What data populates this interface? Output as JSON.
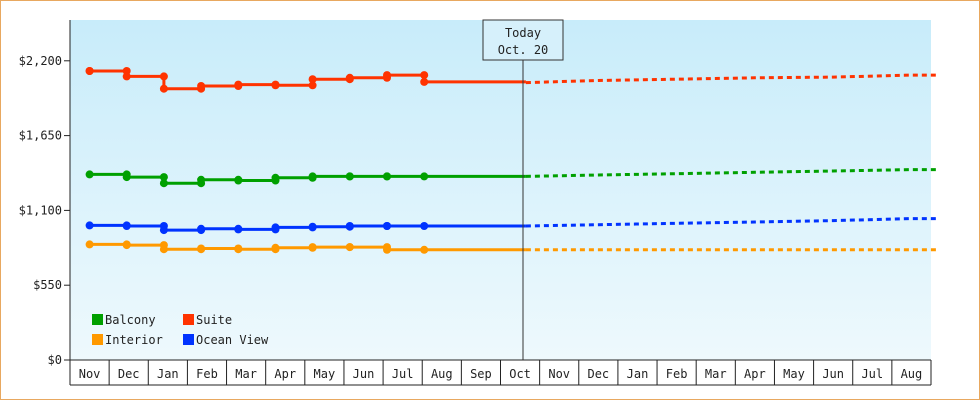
{
  "chart_data": {
    "type": "line",
    "title": "",
    "xlabel": "",
    "ylabel": "",
    "ylim": [
      0,
      2500
    ],
    "y_ticks": [
      {
        "value": 0,
        "label": "$0"
      },
      {
        "value": 550,
        "label": "$550"
      },
      {
        "value": 1100,
        "label": "$1,100"
      },
      {
        "value": 1650,
        "label": "$1,650"
      },
      {
        "value": 2200,
        "label": "$2,200"
      }
    ],
    "categories": [
      "Nov",
      "Dec",
      "Jan",
      "Feb",
      "Mar",
      "Apr",
      "May",
      "Jun",
      "Jul",
      "Aug",
      "Sep",
      "Oct",
      "Nov",
      "Dec",
      "Jan",
      "Feb",
      "Mar",
      "Apr",
      "May",
      "Jun",
      "Jul",
      "Aug"
    ],
    "today_marker": {
      "line1": "Today",
      "line2": "Oct. 20",
      "x": 11.15
    },
    "legend_placement": "bottom-left",
    "grid": false,
    "series": [
      {
        "name": "Suite",
        "color": "#ff3300",
        "history": [
          [
            0,
            2125
          ],
          [
            0,
            2125
          ],
          [
            0.95,
            2125
          ],
          [
            0.95,
            2085
          ],
          [
            1.9,
            2085
          ],
          [
            1.9,
            1995
          ],
          [
            2.85,
            1995
          ],
          [
            2.85,
            2015
          ],
          [
            3.8,
            2015
          ],
          [
            3.8,
            2025
          ],
          [
            4.75,
            2025
          ],
          [
            4.75,
            2020
          ],
          [
            5.7,
            2020
          ],
          [
            5.7,
            2065
          ],
          [
            6.65,
            2065
          ],
          [
            6.65,
            2075
          ],
          [
            7.6,
            2075
          ],
          [
            7.6,
            2095
          ],
          [
            8.55,
            2095
          ],
          [
            8.55,
            2045
          ],
          [
            11.15,
            2045
          ]
        ],
        "forecast": [
          [
            11.15,
            2040
          ],
          [
            13,
            2055
          ],
          [
            15,
            2065
          ],
          [
            17,
            2075
          ],
          [
            19,
            2080
          ],
          [
            21,
            2095
          ],
          [
            21.7,
            2095
          ]
        ]
      },
      {
        "name": "Balcony",
        "color": "#00a000",
        "history": [
          [
            0,
            1365
          ],
          [
            0.95,
            1365
          ],
          [
            0.95,
            1345
          ],
          [
            1.9,
            1345
          ],
          [
            1.9,
            1300
          ],
          [
            2.85,
            1300
          ],
          [
            2.85,
            1325
          ],
          [
            3.8,
            1325
          ],
          [
            3.8,
            1320
          ],
          [
            4.75,
            1320
          ],
          [
            4.75,
            1340
          ],
          [
            5.7,
            1340
          ],
          [
            5.7,
            1350
          ],
          [
            6.65,
            1350
          ],
          [
            6.65,
            1350
          ],
          [
            7.6,
            1350
          ],
          [
            7.6,
            1350
          ],
          [
            8.55,
            1350
          ],
          [
            11.15,
            1350
          ]
        ],
        "forecast": [
          [
            11.15,
            1350
          ],
          [
            13,
            1360
          ],
          [
            15,
            1370
          ],
          [
            17,
            1380
          ],
          [
            19,
            1390
          ],
          [
            21,
            1400
          ],
          [
            21.7,
            1400
          ]
        ]
      },
      {
        "name": "Ocean View",
        "color": "#0033ff",
        "history": [
          [
            0,
            990
          ],
          [
            0.95,
            990
          ],
          [
            0.95,
            985
          ],
          [
            1.9,
            985
          ],
          [
            1.9,
            955
          ],
          [
            2.85,
            955
          ],
          [
            2.85,
            965
          ],
          [
            3.8,
            965
          ],
          [
            3.8,
            960
          ],
          [
            4.75,
            960
          ],
          [
            4.75,
            975
          ],
          [
            5.7,
            975
          ],
          [
            5.7,
            980
          ],
          [
            6.65,
            980
          ],
          [
            6.65,
            985
          ],
          [
            7.6,
            985
          ],
          [
            7.6,
            985
          ],
          [
            8.55,
            985
          ],
          [
            11.15,
            985
          ]
        ],
        "forecast": [
          [
            11.15,
            985
          ],
          [
            13,
            995
          ],
          [
            15,
            1005
          ],
          [
            17,
            1015
          ],
          [
            19,
            1025
          ],
          [
            21,
            1040
          ],
          [
            21.7,
            1040
          ]
        ]
      },
      {
        "name": "Interior",
        "color": "#ff9900",
        "history": [
          [
            0,
            850
          ],
          [
            0.95,
            850
          ],
          [
            0.95,
            845
          ],
          [
            1.9,
            845
          ],
          [
            1.9,
            815
          ],
          [
            2.85,
            815
          ],
          [
            2.85,
            820
          ],
          [
            3.8,
            820
          ],
          [
            3.8,
            815
          ],
          [
            4.75,
            815
          ],
          [
            4.75,
            825
          ],
          [
            5.7,
            825
          ],
          [
            5.7,
            830
          ],
          [
            6.65,
            830
          ],
          [
            6.65,
            830
          ],
          [
            7.6,
            830
          ],
          [
            7.6,
            810
          ],
          [
            8.55,
            810
          ],
          [
            11.15,
            810
          ]
        ],
        "forecast": [
          [
            11.15,
            810
          ],
          [
            13,
            810
          ],
          [
            15,
            810
          ],
          [
            17,
            810
          ],
          [
            19,
            810
          ],
          [
            21,
            810
          ],
          [
            21.7,
            810
          ]
        ]
      }
    ],
    "legend": [
      {
        "name": "Balcony",
        "color": "#00a000"
      },
      {
        "name": "Suite",
        "color": "#ff3300"
      },
      {
        "name": "Interior",
        "color": "#ff9900"
      },
      {
        "name": "Ocean View",
        "color": "#0033ff"
      }
    ]
  }
}
